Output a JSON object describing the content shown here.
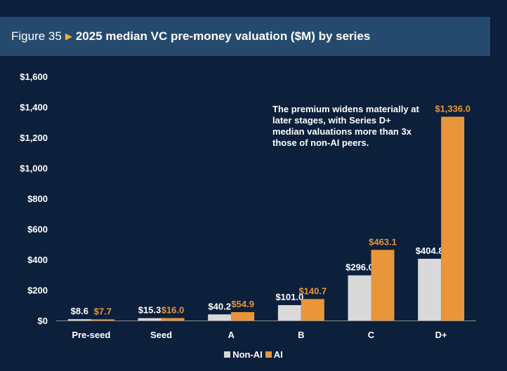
{
  "header": {
    "figure_number": "Figure 35",
    "title": "2025 median VC pre-money valuation ($M) by series"
  },
  "annotation": "The premium widens materially at later stages, with Series D+ median valuations more than 3x those of non-AI peers.",
  "colors": {
    "non_ai": "#d9d9d9",
    "ai": "#e9963a",
    "background": "#0c1f3b",
    "header_bg": "#264a6e",
    "arrow": "#f0b323"
  },
  "chart_data": {
    "type": "bar",
    "title": "2025 median VC pre-money valuation ($M) by series",
    "xlabel": "",
    "ylabel": "",
    "categories": [
      "Pre-seed",
      "Seed",
      "A",
      "B",
      "C",
      "D+"
    ],
    "series": [
      {
        "name": "Non-AI",
        "values": [
          8.6,
          15.3,
          40.2,
          101.0,
          296.0,
          404.8
        ],
        "labels": [
          "$8.6",
          "$15.3",
          "$40.2",
          "$101.0",
          "$296.0",
          "$404.8"
        ]
      },
      {
        "name": "AI",
        "values": [
          7.7,
          16.0,
          54.9,
          140.7,
          463.1,
          1336.0
        ],
        "labels": [
          "$7.7",
          "$16.0",
          "$54.9",
          "$140.7",
          "$463.1",
          "$1,336.0"
        ]
      }
    ],
    "ylim": [
      0,
      1600
    ],
    "yticks": [
      0,
      200,
      400,
      600,
      800,
      1000,
      1200,
      1400,
      1600
    ],
    "ytick_labels": [
      "$0",
      "$200",
      "$400",
      "$600",
      "$800",
      "$1,000",
      "$1,200",
      "$1,400",
      "$1,600"
    ],
    "grid": false,
    "legend_position": "bottom-center"
  }
}
